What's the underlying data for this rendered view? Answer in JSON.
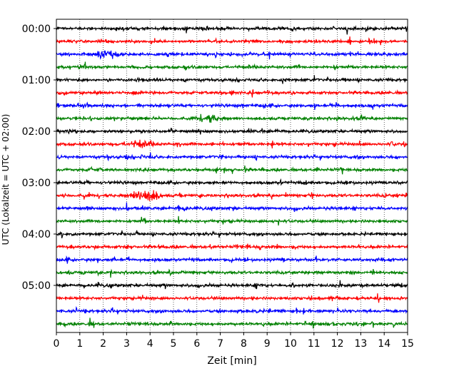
{
  "chart_data": {
    "type": "line",
    "title": "",
    "xlabel": "Zeit  [min]",
    "ylabel": "UTC (Lokalzeit = UTC + 02:00)",
    "xlim": [
      0,
      15
    ],
    "x_ticks": [
      "0",
      "1",
      "2",
      "3",
      "4",
      "5",
      "6",
      "7",
      "8",
      "9",
      "10",
      "11",
      "12",
      "13",
      "14",
      "15"
    ],
    "y_ticks": [
      "00:00",
      "01:00",
      "02:00",
      "03:00",
      "04:00",
      "05:00"
    ],
    "grid": "vertical dotted lines at each minute",
    "row_minutes": 15,
    "trace_colors": [
      "#000000",
      "#ff0000",
      "#0000ff",
      "#008000"
    ],
    "series": [
      {
        "start": "00:00",
        "color": "#000000"
      },
      {
        "start": "00:15",
        "color": "#ff0000"
      },
      {
        "start": "00:30",
        "color": "#0000ff",
        "event_minute": 2.2,
        "event_amplitude": 4
      },
      {
        "start": "00:45",
        "color": "#008000"
      },
      {
        "start": "01:00",
        "color": "#000000"
      },
      {
        "start": "01:15",
        "color": "#ff0000"
      },
      {
        "start": "01:30",
        "color": "#0000ff"
      },
      {
        "start": "01:45",
        "color": "#008000",
        "event_minute": 6.5,
        "event_amplitude": 2.5
      },
      {
        "start": "02:00",
        "color": "#000000"
      },
      {
        "start": "02:15",
        "color": "#ff0000",
        "event_minute": 3.6,
        "event_amplitude": 3
      },
      {
        "start": "02:30",
        "color": "#0000ff"
      },
      {
        "start": "02:45",
        "color": "#008000"
      },
      {
        "start": "03:00",
        "color": "#000000"
      },
      {
        "start": "03:15",
        "color": "#ff0000",
        "event_minute": 3.8,
        "event_amplitude": 8
      },
      {
        "start": "03:30",
        "color": "#0000ff"
      },
      {
        "start": "03:45",
        "color": "#008000"
      },
      {
        "start": "04:00",
        "color": "#000000"
      },
      {
        "start": "04:15",
        "color": "#ff0000"
      },
      {
        "start": "04:30",
        "color": "#0000ff"
      },
      {
        "start": "04:45",
        "color": "#008000"
      },
      {
        "start": "05:00",
        "color": "#000000"
      },
      {
        "start": "05:15",
        "color": "#ff0000"
      },
      {
        "start": "05:30",
        "color": "#0000ff"
      },
      {
        "start": "05:45",
        "color": "#008000"
      }
    ]
  }
}
